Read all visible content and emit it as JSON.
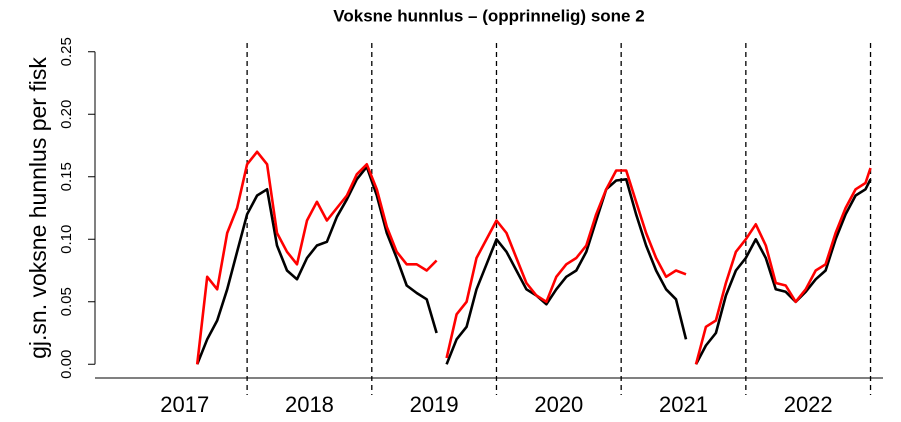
{
  "chart_data": {
    "type": "line",
    "title": "Voksne hunnlus – (opprinnelig) sone 2",
    "ylabel": "gj.sn. voksne hunnlus per fisk",
    "xlim": [
      2016.78,
      2023.1
    ],
    "ylim": [
      -0.011,
      0.257
    ],
    "yticks": [
      {
        "value": 0,
        "label": "0.00"
      },
      {
        "value": 0.05,
        "label": "0.05"
      },
      {
        "value": 0.1,
        "label": "0.10"
      },
      {
        "value": 0.15,
        "label": "0.15"
      },
      {
        "value": 0.2,
        "label": "0.20"
      },
      {
        "value": 0.25,
        "label": "0.25"
      }
    ],
    "xticks": [
      {
        "value": 2017.5,
        "label": "2017"
      },
      {
        "value": 2018.5,
        "label": "2018"
      },
      {
        "value": 2019.5,
        "label": "2019"
      },
      {
        "value": 2020.5,
        "label": "2020"
      },
      {
        "value": 2021.5,
        "label": "2021"
      },
      {
        "value": 2022.5,
        "label": "2022"
      }
    ],
    "vlines": [
      2018,
      2019,
      2020,
      2021,
      2022,
      2023
    ],
    "x": [
      2017.6,
      2017.68,
      2017.76,
      2017.84,
      2017.92,
      2018,
      2018.08,
      2018.16,
      2018.24,
      2018.32,
      2018.4,
      2018.48,
      2018.56,
      2018.64,
      2018.72,
      2018.8,
      2018.88,
      2018.96,
      2019.04,
      2019.12,
      2019.2,
      2019.28,
      2019.36,
      2019.44,
      2019.52,
      2019.56,
      2019.6,
      2019.68,
      2019.76,
      2019.84,
      2019.92,
      2020,
      2020.08,
      2020.16,
      2020.24,
      2020.32,
      2020.4,
      2020.48,
      2020.56,
      2020.64,
      2020.72,
      2020.8,
      2020.88,
      2020.96,
      2021.04,
      2021.12,
      2021.2,
      2021.28,
      2021.36,
      2021.44,
      2021.52,
      2021.56,
      2021.6,
      2021.68,
      2021.76,
      2021.84,
      2021.92,
      2022,
      2022.08,
      2022.16,
      2022.24,
      2022.32,
      2022.4,
      2022.48,
      2022.56,
      2022.64,
      2022.72,
      2022.8,
      2022.88,
      2022.96,
      2023
    ],
    "series": [
      {
        "color": "#000000",
        "values": [
          0,
          0.02,
          0.035,
          0.06,
          0.09,
          0.12,
          0.135,
          0.14,
          0.095,
          0.075,
          0.068,
          0.085,
          0.095,
          0.098,
          0.118,
          0.132,
          0.148,
          0.158,
          0.135,
          0.105,
          0.085,
          0.063,
          0.057,
          0.052,
          0.025,
          null,
          0,
          0.02,
          0.03,
          0.06,
          0.08,
          0.1,
          0.09,
          0.075,
          0.06,
          0.055,
          0.048,
          0.06,
          0.07,
          0.075,
          0.09,
          0.115,
          0.14,
          0.147,
          0.148,
          0.12,
          0.095,
          0.075,
          0.06,
          0.052,
          0.02,
          null,
          0,
          0.015,
          0.025,
          0.055,
          0.075,
          0.085,
          0.1,
          0.085,
          0.06,
          0.058,
          0.05,
          0.058,
          0.068,
          0.075,
          0.1,
          0.12,
          0.135,
          0.14,
          0.148
        ]
      },
      {
        "color": "#ff0000",
        "values": [
          0,
          0.07,
          0.06,
          0.105,
          0.125,
          0.16,
          0.17,
          0.16,
          0.105,
          0.09,
          0.08,
          0.115,
          0.13,
          0.115,
          0.125,
          0.135,
          0.152,
          0.16,
          0.14,
          0.11,
          0.09,
          0.08,
          0.08,
          0.075,
          0.083,
          null,
          0.005,
          0.04,
          0.05,
          0.085,
          0.1,
          0.115,
          0.105,
          0.085,
          0.065,
          0.055,
          0.05,
          0.07,
          0.08,
          0.085,
          0.095,
          0.12,
          0.14,
          0.155,
          0.155,
          0.13,
          0.105,
          0.085,
          0.07,
          0.075,
          0.072,
          null,
          0,
          0.03,
          0.035,
          0.065,
          0.09,
          0.1,
          0.112,
          0.095,
          0.065,
          0.063,
          0.05,
          0.06,
          0.075,
          0.08,
          0.105,
          0.125,
          0.14,
          0.145,
          0.157
        ]
      }
    ]
  }
}
